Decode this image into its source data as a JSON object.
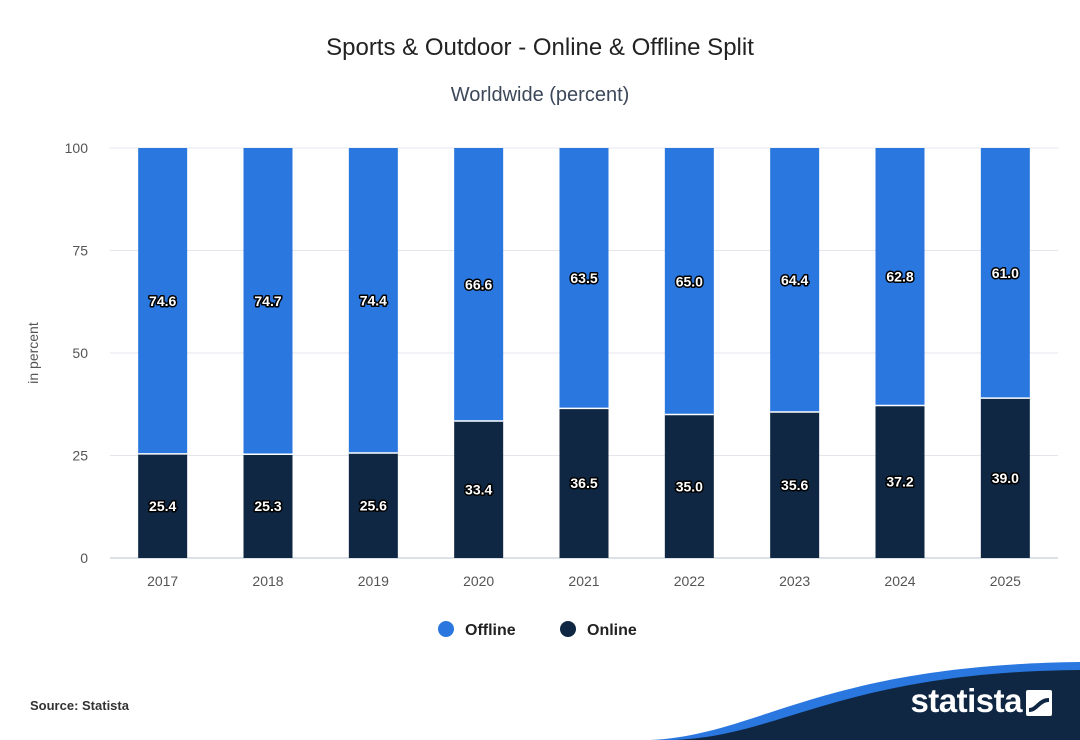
{
  "header": {
    "title": "Sports & Outdoor - Online & Offline Split",
    "subtitle": "Worldwide (percent)"
  },
  "chart_data": {
    "type": "bar",
    "stacked": true,
    "title": "Sports & Outdoor - Online & Offline Split",
    "subtitle": "Worldwide (percent)",
    "xlabel": "",
    "ylabel": "in percent",
    "ylim": [
      0,
      100
    ],
    "yticks": [
      0,
      25,
      50,
      75,
      100
    ],
    "grid": true,
    "legend_position": "bottom",
    "categories": [
      "2017",
      "2018",
      "2019",
      "2020",
      "2021",
      "2022",
      "2023",
      "2024",
      "2025"
    ],
    "series": [
      {
        "name": "Online",
        "color": "#0f2742",
        "values": [
          25.4,
          25.3,
          25.6,
          33.4,
          36.5,
          35.0,
          35.6,
          37.2,
          39.0
        ]
      },
      {
        "name": "Offline",
        "color": "#2a77e0",
        "values": [
          74.6,
          74.7,
          74.4,
          66.6,
          63.5,
          65.0,
          64.4,
          62.8,
          61.0
        ]
      }
    ],
    "legend_order": [
      "Offline",
      "Online"
    ]
  },
  "footer": {
    "source": "Source: Statista",
    "brand": "statista"
  },
  "colors": {
    "offline": "#2a77e0",
    "online": "#0f2742",
    "brand_band": "#0f2742",
    "brand_accent": "#2a77e0"
  }
}
